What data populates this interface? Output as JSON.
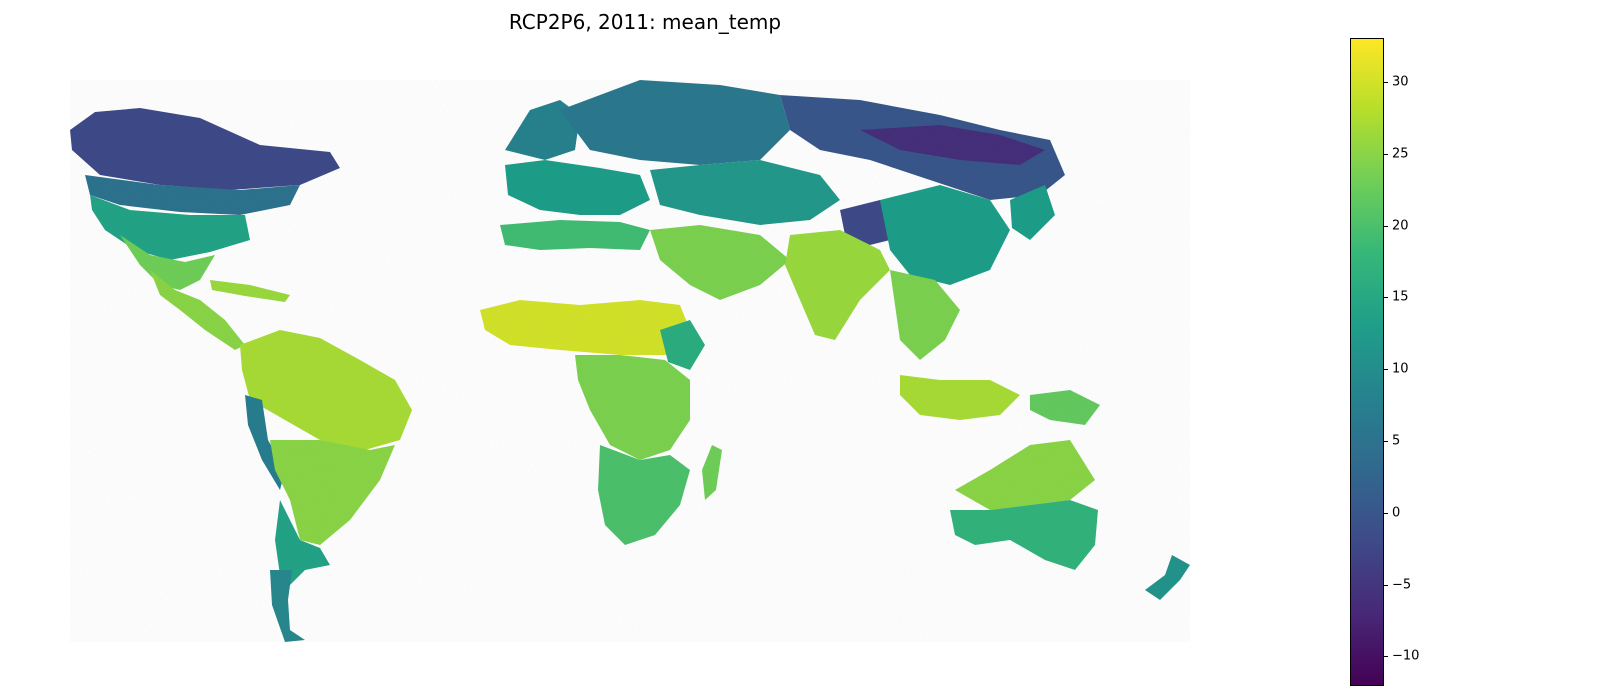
{
  "title": "RCP2P6, 2011: mean_temp",
  "colorbar": {
    "colormap": "viridis",
    "min": -12,
    "max": 33,
    "ticks": [
      {
        "value": 30,
        "label": "30"
      },
      {
        "value": 25,
        "label": "25"
      },
      {
        "value": 20,
        "label": "20"
      },
      {
        "value": 15,
        "label": "15"
      },
      {
        "value": 10,
        "label": "10"
      },
      {
        "value": 5,
        "label": "5"
      },
      {
        "value": 0,
        "label": "0"
      },
      {
        "value": -5,
        "label": "−5"
      },
      {
        "value": -10,
        "label": "−10"
      }
    ]
  },
  "colors": {
    "viridis_stops": [
      "#440154",
      "#482878",
      "#3e4a89",
      "#31688e",
      "#26828e",
      "#1f9e89",
      "#35b779",
      "#6ece58",
      "#b5de2b",
      "#fde725"
    ]
  }
}
